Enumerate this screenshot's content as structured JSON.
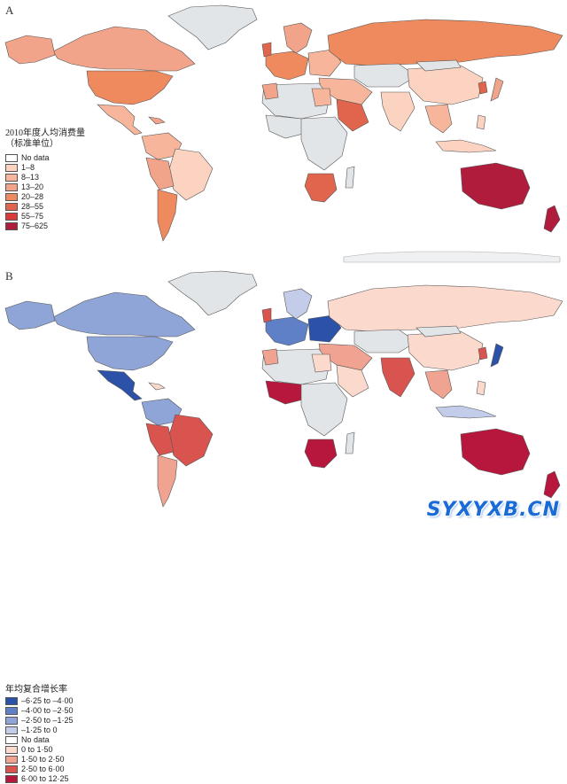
{
  "panel_a": {
    "label": "A",
    "legend_title": "2010年度人均消费量",
    "legend_subtitle": "（标准单位）",
    "legend": [
      {
        "label": "No data",
        "color": "#ffffff"
      },
      {
        "label": "1–8",
        "color": "#fbd3c0"
      },
      {
        "label": "8–13",
        "color": "#f7b69c"
      },
      {
        "label": "13–20",
        "color": "#f2a48a"
      },
      {
        "label": "20–28",
        "color": "#ee8a5e"
      },
      {
        "label": "28–55",
        "color": "#e1654c"
      },
      {
        "label": "55–75",
        "color": "#d93b3b"
      },
      {
        "label": "75–625",
        "color": "#b01c3b"
      }
    ]
  },
  "panel_b": {
    "label": "B",
    "legend_title": "年均复合增长率",
    "legend": [
      {
        "label": "–6·25 to –4·00",
        "color": "#2b52a8"
      },
      {
        "label": "–4·00 to –2·50",
        "color": "#5f7fc6"
      },
      {
        "label": "–2·50 to –1·25",
        "color": "#8fa5d8"
      },
      {
        "label": "–1·25 to 0",
        "color": "#c3cdea"
      },
      {
        "label": "No data",
        "color": "#ffffff"
      },
      {
        "label": "0 to 1·50",
        "color": "#fbd9cd"
      },
      {
        "label": "1·50 to 2·50",
        "color": "#f0a391"
      },
      {
        "label": "2·50 to 6·00",
        "color": "#d9534f"
      },
      {
        "label": "6·00 to 12·25",
        "color": "#b7173c"
      }
    ]
  },
  "watermark": "SYXYXB.CN",
  "palette": {
    "no_data": "#e2e5e8",
    "border": "#555555"
  }
}
